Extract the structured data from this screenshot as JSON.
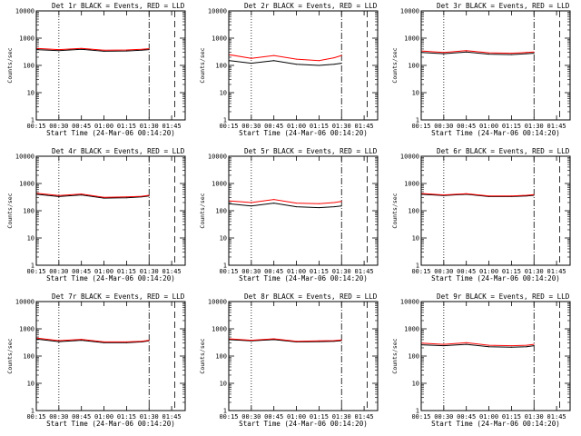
{
  "figure": {
    "xlabel": "Start Time (24-Mar-06 00:14:20)",
    "ylabel": "Counts/sec",
    "xtick_labels": [
      "00:15",
      "00:30",
      "00:45",
      "01:00",
      "01:15",
      "01:30",
      "01:45"
    ],
    "ytick_labels": [
      "1",
      "10",
      "100",
      "1000",
      "10000"
    ],
    "series_colors": {
      "events": "#000000",
      "lld": "#ff0000"
    }
  },
  "chart_data": [
    {
      "type": "line",
      "title": "Det 1r BLACK = Events, RED = LLD",
      "xlabel": "Start Time (24-Mar-06 00:14:20)",
      "ylabel": "Counts/sec",
      "xlim": [
        "00:15",
        "01:54"
      ],
      "ylim": [
        1,
        10000
      ],
      "yscale": "log",
      "x": [
        "00:15",
        "00:30",
        "00:45",
        "01:00",
        "01:15",
        "01:25",
        "01:30"
      ],
      "series": [
        {
          "color": "#000000",
          "values": [
            380,
            350,
            390,
            330,
            340,
            360,
            380
          ]
        },
        {
          "color": "#ff0000",
          "values": [
            420,
            380,
            420,
            360,
            370,
            390,
            410
          ]
        }
      ],
      "dotted_line_x": "00:30",
      "dashdot_line_x": "01:30",
      "dashed_line_x": "01:47"
    },
    {
      "type": "line",
      "title": "Det 2r BLACK = Events, RED = LLD",
      "xlabel": "Start Time (24-Mar-06 00:14:20)",
      "ylabel": "Counts/sec",
      "xlim": [
        "00:15",
        "01:54"
      ],
      "ylim": [
        1,
        10000
      ],
      "yscale": "log",
      "x": [
        "00:15",
        "00:30",
        "00:45",
        "01:00",
        "01:15",
        "01:25",
        "01:30"
      ],
      "series": [
        {
          "color": "#000000",
          "values": [
            150,
            120,
            150,
            110,
            100,
            110,
            120
          ]
        },
        {
          "color": "#ff0000",
          "values": [
            250,
            180,
            230,
            170,
            150,
            190,
            230
          ]
        }
      ],
      "dotted_line_x": "00:30",
      "dashdot_line_x": "01:30",
      "dashed_line_x": "01:47"
    },
    {
      "type": "line",
      "title": "Det 3r BLACK = Events, RED = LLD",
      "xlabel": "Start Time (24-Mar-06 00:14:20)",
      "ylabel": "Counts/sec",
      "xlim": [
        "00:15",
        "01:54"
      ],
      "ylim": [
        1,
        10000
      ],
      "yscale": "log",
      "x": [
        "00:15",
        "00:30",
        "00:45",
        "01:00",
        "01:15",
        "01:25",
        "01:30"
      ],
      "series": [
        {
          "color": "#000000",
          "values": [
            300,
            270,
            310,
            260,
            250,
            270,
            280
          ]
        },
        {
          "color": "#ff0000",
          "values": [
            340,
            300,
            350,
            290,
            280,
            300,
            310
          ]
        }
      ],
      "dotted_line_x": "00:30",
      "dashdot_line_x": "01:30",
      "dashed_line_x": "01:47"
    },
    {
      "type": "line",
      "title": "Det 4r BLACK = Events, RED = LLD",
      "xlabel": "Start Time (24-Mar-06 00:14:20)",
      "ylabel": "Counts/sec",
      "xlim": [
        "00:15",
        "01:54"
      ],
      "ylim": [
        1,
        10000
      ],
      "yscale": "log",
      "x": [
        "00:15",
        "00:30",
        "00:45",
        "01:00",
        "01:15",
        "01:25",
        "01:30"
      ],
      "series": [
        {
          "color": "#000000",
          "values": [
            400,
            330,
            380,
            290,
            300,
            320,
            350
          ]
        },
        {
          "color": "#ff0000",
          "values": [
            440,
            360,
            410,
            310,
            320,
            340,
            370
          ]
        }
      ],
      "dotted_line_x": "00:30",
      "dashdot_line_x": "01:30",
      "dashed_line_x": "01:47"
    },
    {
      "type": "line",
      "title": "Det 5r BLACK = Events, RED = LLD",
      "xlabel": "Start Time (24-Mar-06 00:14:20)",
      "ylabel": "Counts/sec",
      "xlim": [
        "00:15",
        "01:54"
      ],
      "ylim": [
        1,
        10000
      ],
      "yscale": "log",
      "x": [
        "00:15",
        "00:30",
        "00:45",
        "01:00",
        "01:15",
        "01:25",
        "01:30"
      ],
      "series": [
        {
          "color": "#000000",
          "values": [
            180,
            150,
            190,
            140,
            130,
            140,
            150
          ]
        },
        {
          "color": "#ff0000",
          "values": [
            230,
            200,
            260,
            190,
            180,
            200,
            220
          ]
        }
      ],
      "dotted_line_x": "00:30",
      "dashdot_line_x": "01:30",
      "dashed_line_x": "01:47"
    },
    {
      "type": "line",
      "title": "Det 6r BLACK = Events, RED = LLD",
      "xlabel": "Start Time (24-Mar-06 00:14:20)",
      "ylabel": "Counts/sec",
      "xlim": [
        "00:15",
        "01:54"
      ],
      "ylim": [
        1,
        10000
      ],
      "yscale": "log",
      "x": [
        "00:15",
        "00:30",
        "00:45",
        "01:00",
        "01:15",
        "01:25",
        "01:30"
      ],
      "series": [
        {
          "color": "#000000",
          "values": [
            400,
            360,
            400,
            330,
            330,
            350,
            370
          ]
        },
        {
          "color": "#ff0000",
          "values": [
            430,
            380,
            420,
            350,
            350,
            370,
            390
          ]
        }
      ],
      "dotted_line_x": "00:30",
      "dashdot_line_x": "01:30",
      "dashed_line_x": "01:47"
    },
    {
      "type": "line",
      "title": "Det 7r BLACK = Events, RED = LLD",
      "xlabel": "Start Time (24-Mar-06 00:14:20)",
      "ylabel": "Counts/sec",
      "xlim": [
        "00:15",
        "01:54"
      ],
      "ylim": [
        1,
        10000
      ],
      "yscale": "log",
      "x": [
        "00:15",
        "00:30",
        "00:45",
        "01:00",
        "01:15",
        "01:25",
        "01:30"
      ],
      "series": [
        {
          "color": "#000000",
          "values": [
            420,
            340,
            380,
            310,
            310,
            330,
            360
          ]
        },
        {
          "color": "#ff0000",
          "values": [
            460,
            370,
            410,
            330,
            330,
            350,
            380
          ]
        }
      ],
      "dotted_line_x": "00:30",
      "dashdot_line_x": "01:30",
      "dashed_line_x": "01:47"
    },
    {
      "type": "line",
      "title": "Det 8r BLACK = Events, RED = LLD",
      "xlabel": "Start Time (24-Mar-06 00:14:20)",
      "ylabel": "Counts/sec",
      "xlim": [
        "00:15",
        "01:54"
      ],
      "ylim": [
        1,
        10000
      ],
      "yscale": "log",
      "x": [
        "00:15",
        "00:30",
        "00:45",
        "01:00",
        "01:15",
        "01:25",
        "01:30"
      ],
      "series": [
        {
          "color": "#000000",
          "values": [
            400,
            360,
            400,
            330,
            340,
            350,
            370
          ]
        },
        {
          "color": "#ff0000",
          "values": [
            430,
            380,
            430,
            350,
            360,
            370,
            390
          ]
        }
      ],
      "dotted_line_x": "00:30",
      "dashdot_line_x": "01:30",
      "dashed_line_x": "01:47"
    },
    {
      "type": "line",
      "title": "Det 9r BLACK = Events, RED = LLD",
      "xlabel": "Start Time (24-Mar-06 00:14:20)",
      "ylabel": "Counts/sec",
      "xlim": [
        "00:15",
        "01:54"
      ],
      "ylim": [
        1,
        10000
      ],
      "yscale": "log",
      "x": [
        "00:15",
        "00:30",
        "00:45",
        "01:00",
        "01:15",
        "01:25",
        "01:30"
      ],
      "series": [
        {
          "color": "#000000",
          "values": [
            260,
            240,
            270,
            220,
            210,
            220,
            240
          ]
        },
        {
          "color": "#ff0000",
          "values": [
            300,
            270,
            310,
            250,
            240,
            250,
            270
          ]
        }
      ],
      "dotted_line_x": "00:30",
      "dashdot_line_x": "01:30",
      "dashed_line_x": "01:47"
    }
  ]
}
